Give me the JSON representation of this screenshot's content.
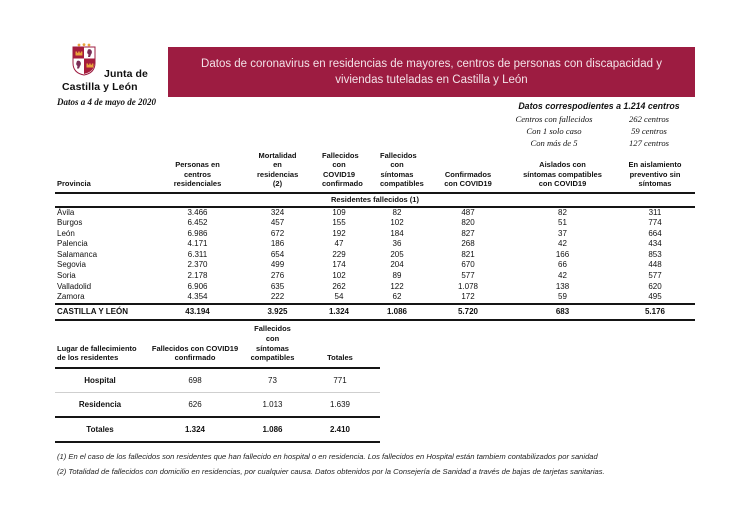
{
  "header": {
    "logo": {
      "line1": "Junta de",
      "line2": "Castilla y León"
    },
    "date_note": "Datos a 4 de mayo de 2020",
    "banner_title": "Datos de coronavirus en residencias de mayores, centros de personas con discapacidad y viviendas tuteladas en Castilla y León",
    "colors": {
      "banner_bg": "#9D1C41",
      "banner_text": "#F3E2E8",
      "shield_red": "#A61C3C",
      "shield_gold": "#E8A33D",
      "shield_purple": "#7B2D56"
    }
  },
  "centers_summary": {
    "title": "Datos correspodientes a 1.214 centros",
    "rows": [
      {
        "label": "Centros con fallecidos",
        "value": "262 centros"
      },
      {
        "label": "Con 1 solo caso",
        "value": "59 centros"
      },
      {
        "label": "Con más de 5",
        "value": "127 centros"
      }
    ]
  },
  "main_table": {
    "col_headers": [
      "Provincia",
      "Personas en centros residenciales",
      "Mortalidad en residencias (2)",
      "Fallecidos con COVID19 confirmado",
      "Fallecidos con síntomas compatibles",
      "Confirmados con COVID19",
      "Aislados con síntomas compatibles con COVID19",
      "En aislamiento preventivo sin síntomas"
    ],
    "subheader": "Residentes fallecidos (1)",
    "rows": [
      {
        "provincia": "Ávila",
        "values": [
          "3.466",
          "324",
          "109",
          "82",
          "487",
          "82",
          "311"
        ]
      },
      {
        "provincia": "Burgos",
        "values": [
          "6.452",
          "457",
          "155",
          "102",
          "820",
          "51",
          "774"
        ]
      },
      {
        "provincia": "León",
        "values": [
          "6.986",
          "672",
          "192",
          "184",
          "827",
          "37",
          "664"
        ]
      },
      {
        "provincia": "Palencia",
        "values": [
          "4.171",
          "186",
          "47",
          "36",
          "268",
          "42",
          "434"
        ]
      },
      {
        "provincia": "Salamanca",
        "values": [
          "6.311",
          "654",
          "229",
          "205",
          "821",
          "166",
          "853"
        ]
      },
      {
        "provincia": "Segovia",
        "values": [
          "2.370",
          "499",
          "174",
          "204",
          "670",
          "66",
          "448"
        ]
      },
      {
        "provincia": "Soria",
        "values": [
          "2.178",
          "276",
          "102",
          "89",
          "577",
          "42",
          "577"
        ]
      },
      {
        "provincia": "Valladolid",
        "values": [
          "6.906",
          "635",
          "262",
          "122",
          "1.078",
          "138",
          "620"
        ]
      },
      {
        "provincia": "Zamora",
        "values": [
          "4.354",
          "222",
          "54",
          "62",
          "172",
          "59",
          "495"
        ]
      }
    ],
    "total": {
      "provincia": "CASTILLA Y LEÓN",
      "values": [
        "43.194",
        "3.925",
        "1.324",
        "1.086",
        "5.720",
        "683",
        "5.176"
      ]
    }
  },
  "location_table": {
    "col_headers": [
      "Lugar de fallecimiento de los residentes",
      "Fallecidos con COVID19 confirmado",
      "Fallecidos con síntomas compatibles",
      "Totales"
    ],
    "rows": [
      {
        "label": "Hospital",
        "values": [
          "698",
          "73",
          "771"
        ]
      },
      {
        "label": "Residencia",
        "values": [
          "626",
          "1.013",
          "1.639"
        ]
      },
      {
        "label": "Totales",
        "values": [
          "1.324",
          "1.086",
          "2.410"
        ]
      }
    ]
  },
  "footnotes": [
    "(1) En el caso de los fallecidos son residentes que han fallecido en hospital o en residencia. Los fallecidos en Hospital están tambiem contabilizados por sanidad",
    "(2) Totalidad de fallecidos con domicilio en residencias, por cualquier causa. Datos obtenidos por la Consejería de Sanidad a través de bajas de tarjetas sanitarias."
  ]
}
